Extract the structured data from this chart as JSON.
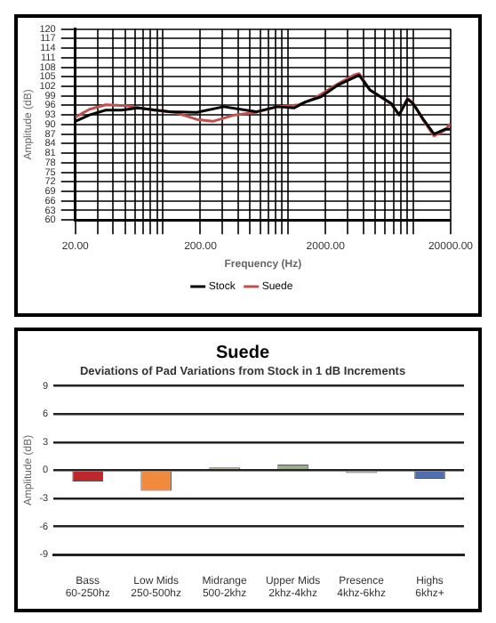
{
  "chart_data": [
    {
      "type": "line",
      "xlabel": "Frequency (Hz)",
      "ylabel": "Amplitude (dB)",
      "log": "x",
      "grid": true,
      "legend": "bottom",
      "marker": "none",
      "line_style": "solid",
      "xlim": [
        20,
        20000
      ],
      "ylim": [
        60,
        120
      ],
      "xticks": [
        {
          "value": 20,
          "label": "20.00"
        },
        {
          "value": 30,
          "label": null
        },
        {
          "value": 40,
          "label": null
        },
        {
          "value": 50,
          "label": null
        },
        {
          "value": 60,
          "label": null
        },
        {
          "value": 70,
          "label": null
        },
        {
          "value": 80,
          "label": null
        },
        {
          "value": 90,
          "label": null
        },
        {
          "value": 100,
          "label": null
        },
        {
          "value": 200,
          "label": "200.00"
        },
        {
          "value": 300,
          "label": null
        },
        {
          "value": 400,
          "label": null
        },
        {
          "value": 500,
          "label": null
        },
        {
          "value": 600,
          "label": null
        },
        {
          "value": 700,
          "label": null
        },
        {
          "value": 800,
          "label": null
        },
        {
          "value": 900,
          "label": null
        },
        {
          "value": 1000,
          "label": null
        },
        {
          "value": 2000,
          "label": "2000.00"
        },
        {
          "value": 3000,
          "label": null
        },
        {
          "value": 4000,
          "label": null
        },
        {
          "value": 5000,
          "label": null
        },
        {
          "value": 6000,
          "label": null
        },
        {
          "value": 7000,
          "label": null
        },
        {
          "value": 8000,
          "label": null
        },
        {
          "value": 9000,
          "label": null
        },
        {
          "value": 10000,
          "label": null
        },
        {
          "value": 20000,
          "label": "20000.00"
        }
      ],
      "yticks": [
        60,
        63,
        66,
        69,
        72,
        75,
        78,
        81,
        84,
        87,
        90,
        93,
        96,
        99,
        102,
        105,
        108,
        111,
        114,
        117,
        120
      ],
      "series": [
        {
          "name": "Stock",
          "color": "#000000",
          "x": [
            20,
            26,
            35,
            47,
            63,
            113,
            187,
            307,
            556,
            823,
            1119,
            1366,
            1838,
            2486,
            3346,
            3706,
            4545,
            5518,
            6716,
            7750,
            9050,
            10000,
            12100,
            14740,
            17950,
            19850
          ],
          "values": [
            91,
            93,
            94.5,
            94.5,
            95.2,
            94,
            93.8,
            95.6,
            94,
            95.6,
            95.2,
            97,
            98.7,
            102.3,
            104.7,
            105.5,
            100.8,
            98.7,
            96.6,
            93,
            98,
            96.6,
            91.6,
            87,
            88.5,
            88.5
          ]
        },
        {
          "name": "Suede",
          "color": "#c0504d",
          "x": [
            20,
            26,
            35,
            51,
            84,
            125,
            187,
            251,
            375,
            556,
            823,
            1232,
            1663,
            2486,
            3346,
            3706,
            4545,
            5518,
            6716,
            7750,
            9050,
            10000,
            12100,
            14740,
            17950,
            19850
          ],
          "values": [
            92.3,
            94.8,
            96.2,
            95.9,
            94.5,
            93.8,
            91.6,
            91,
            93,
            93.8,
            95.6,
            96.2,
            98.4,
            102.7,
            105.5,
            106,
            100.8,
            98.7,
            96.3,
            93,
            98.2,
            96.8,
            91.3,
            86.4,
            88.2,
            90.2
          ]
        }
      ]
    },
    {
      "type": "bar",
      "title": "Suede",
      "subtitle": "Deviations of Pad Variations from Stock in 1 dB Increments",
      "ylabel": "Amplitude (dB)",
      "grid": "y",
      "legend": false,
      "categories": [
        "Bass\n60-250hz",
        "Low Mids\n250-500hz",
        "Midrange\n500-2khz",
        "Upper Mids\n2khz-4khz",
        "Presence\n4khz-6khz",
        "Highs\n6khz+"
      ],
      "values": [
        -1.2,
        -2.2,
        0.3,
        0.6,
        -0.3,
        -0.9
      ],
      "colors": [
        "#c0272d",
        "#f08a3c",
        "#b3ab95",
        "#9cae8c",
        "#a6a6a6",
        "#4f6fb0"
      ],
      "ylim": [
        -9,
        9
      ],
      "yticks": [
        -9,
        -6,
        -3,
        0,
        3,
        6,
        9
      ]
    }
  ]
}
